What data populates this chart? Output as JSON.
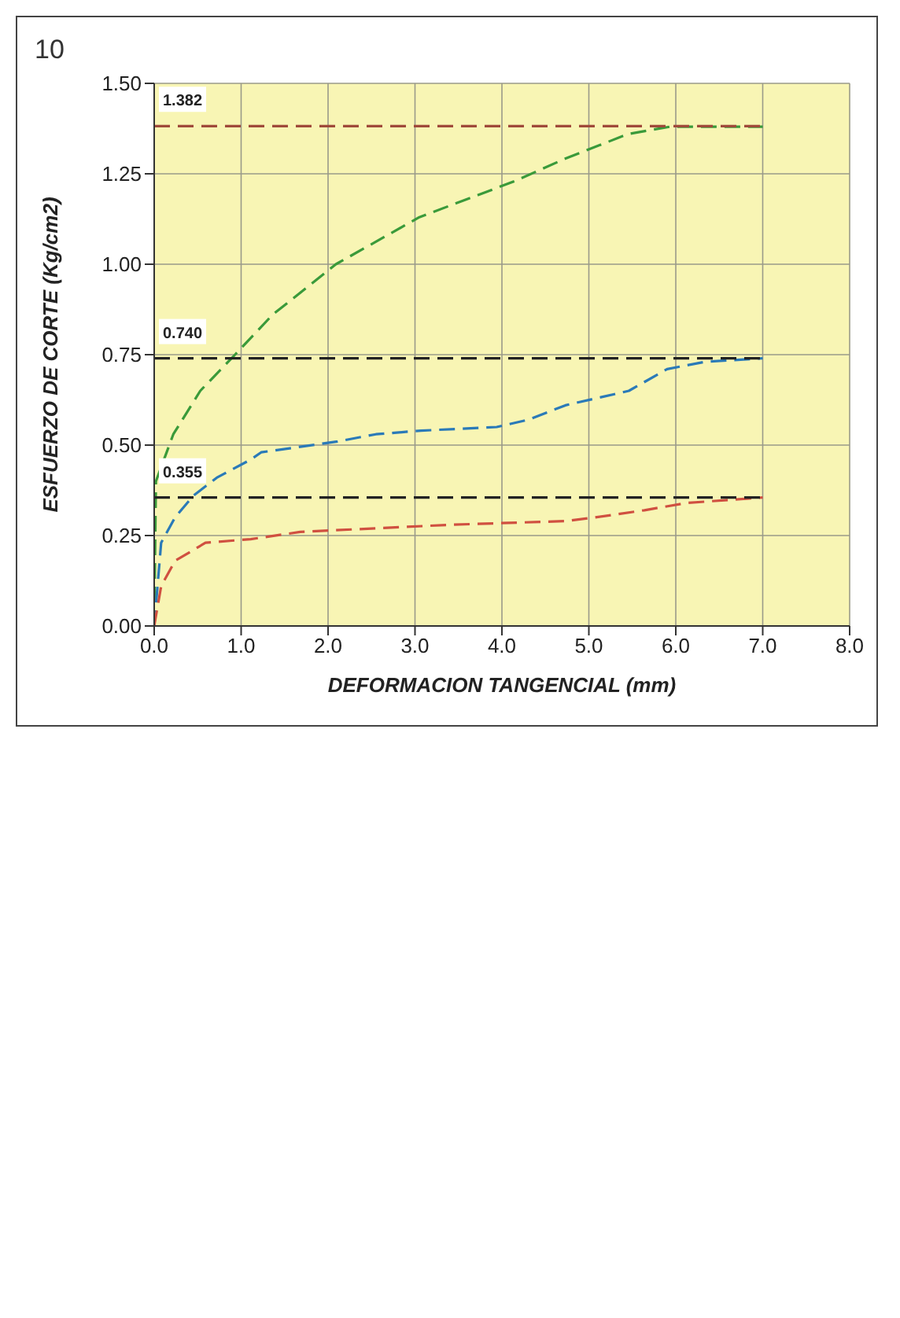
{
  "chart_data": {
    "type": "line",
    "xlabel": "DEFORMACION TANGENCIAL (mm)",
    "ylabel": "ESFUERZO DE CORTE (Kg/cm2)",
    "xlim": [
      0,
      8
    ],
    "ylim": [
      0,
      1.5
    ],
    "xticks": [
      {
        "value": 0,
        "label": "0.0"
      },
      {
        "value": 1,
        "label": "1.0"
      },
      {
        "value": 2,
        "label": "2.0"
      },
      {
        "value": 3,
        "label": "3.0"
      },
      {
        "value": 4,
        "label": "4.0"
      },
      {
        "value": 5,
        "label": "5.0"
      },
      {
        "value": 6,
        "label": "6.0"
      },
      {
        "value": 7,
        "label": "7.0"
      },
      {
        "value": 8,
        "label": "8.0"
      }
    ],
    "yticks": [
      {
        "value": 0,
        "label": "0.00"
      },
      {
        "value": 0.25,
        "label": "0.25"
      },
      {
        "value": 0.5,
        "label": "0.50"
      },
      {
        "value": 0.75,
        "label": "0.75"
      },
      {
        "value": 1,
        "label": "1.00"
      },
      {
        "value": 1.25,
        "label": "1.25"
      },
      {
        "value": 1.5,
        "label": "1.50"
      }
    ],
    "grid": true,
    "legend": false,
    "marker": "none",
    "line_style": "dashed",
    "series": [
      {
        "color": "#3a9a3a",
        "x": [
          0,
          0.02,
          0.22,
          0.53,
          0.93,
          1.36,
          2.09,
          3.05,
          4.15,
          4.71,
          5.45,
          5.93,
          7.0
        ],
        "values": [
          0,
          0.4,
          0.53,
          0.65,
          0.75,
          0.86,
          1.0,
          1.13,
          1.23,
          1.29,
          1.36,
          1.38,
          1.38
        ]
      },
      {
        "color": "#2a7ab8",
        "x": [
          0,
          0.08,
          0.24,
          0.45,
          0.72,
          1.11,
          1.23,
          2.11,
          2.55,
          3.07,
          3.94,
          4.3,
          4.73,
          5.46,
          5.9,
          6.33,
          7.0
        ],
        "values": [
          0,
          0.23,
          0.3,
          0.36,
          0.41,
          0.46,
          0.48,
          0.51,
          0.53,
          0.54,
          0.55,
          0.57,
          0.61,
          0.65,
          0.71,
          0.73,
          0.74
        ]
      },
      {
        "color": "#d05040",
        "x": [
          0,
          0.08,
          0.24,
          0.59,
          1.11,
          1.68,
          2.55,
          3.43,
          4.73,
          5.07,
          5.64,
          6.12,
          7.0
        ],
        "values": [
          0,
          0.11,
          0.18,
          0.23,
          0.24,
          0.26,
          0.27,
          0.28,
          0.29,
          0.3,
          0.32,
          0.34,
          0.355
        ]
      },
      {
        "color": "#a04a3a",
        "x": [
          0,
          7
        ],
        "values": [
          1.382,
          1.382
        ]
      },
      {
        "color": "#222222",
        "x": [
          0,
          7
        ],
        "values": [
          0.74,
          0.74
        ]
      },
      {
        "color": "#222222",
        "x": [
          0,
          7
        ],
        "values": [
          0.355,
          0.355
        ]
      }
    ],
    "annotations": [
      {
        "text": "1.382",
        "y": 1.382
      },
      {
        "text": "0.740",
        "y": 0.74
      },
      {
        "text": "0.355",
        "y": 0.355
      },
      "10"
    ]
  }
}
